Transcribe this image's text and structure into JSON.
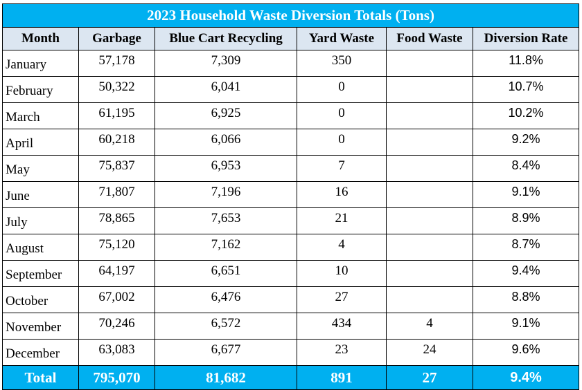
{
  "title": "2023 Household Waste Diversion Totals (Tons)",
  "columns": [
    "Month",
    "Garbage",
    "Blue Cart Recycling",
    "Yard Waste",
    "Food Waste",
    "Diversion Rate"
  ],
  "rows": [
    {
      "month": "January",
      "garbage": "57,178",
      "recycling": "7,309",
      "yard": "350",
      "food": "",
      "rate": "11.8%"
    },
    {
      "month": "February",
      "garbage": "50,322",
      "recycling": "6,041",
      "yard": "0",
      "food": "",
      "rate": "10.7%"
    },
    {
      "month": "March",
      "garbage": "61,195",
      "recycling": "6,925",
      "yard": "0",
      "food": "",
      "rate": "10.2%"
    },
    {
      "month": "April",
      "garbage": "60,218",
      "recycling": "6,066",
      "yard": "0",
      "food": "",
      "rate": "9.2%"
    },
    {
      "month": "May",
      "garbage": "75,837",
      "recycling": "6,953",
      "yard": "7",
      "food": "",
      "rate": "8.4%"
    },
    {
      "month": "June",
      "garbage": "71,807",
      "recycling": "7,196",
      "yard": "16",
      "food": "",
      "rate": "9.1%"
    },
    {
      "month": "July",
      "garbage": "78,865",
      "recycling": "7,653",
      "yard": "21",
      "food": "",
      "rate": "8.9%"
    },
    {
      "month": "August",
      "garbage": "75,120",
      "recycling": "7,162",
      "yard": "4",
      "food": "",
      "rate": "8.7%"
    },
    {
      "month": "September",
      "garbage": "64,197",
      "recycling": "6,651",
      "yard": "10",
      "food": "",
      "rate": "9.4%"
    },
    {
      "month": "October",
      "garbage": "67,002",
      "recycling": "6,476",
      "yard": "27",
      "food": "",
      "rate": "8.8%"
    },
    {
      "month": "November",
      "garbage": "70,246",
      "recycling": "6,572",
      "yard": "434",
      "food": "4",
      "rate": "9.1%"
    },
    {
      "month": "December",
      "garbage": "63,083",
      "recycling": "6,677",
      "yard": "23",
      "food": "24",
      "rate": "9.6%"
    }
  ],
  "total": {
    "label": "Total",
    "garbage": "795,070",
    "recycling": "81,682",
    "yard": "891",
    "food": "27",
    "rate": "9.4%"
  },
  "colors": {
    "accent": "#00b0f0",
    "header_bg": "#dce6f1",
    "text_on_accent": "#ffffff"
  }
}
